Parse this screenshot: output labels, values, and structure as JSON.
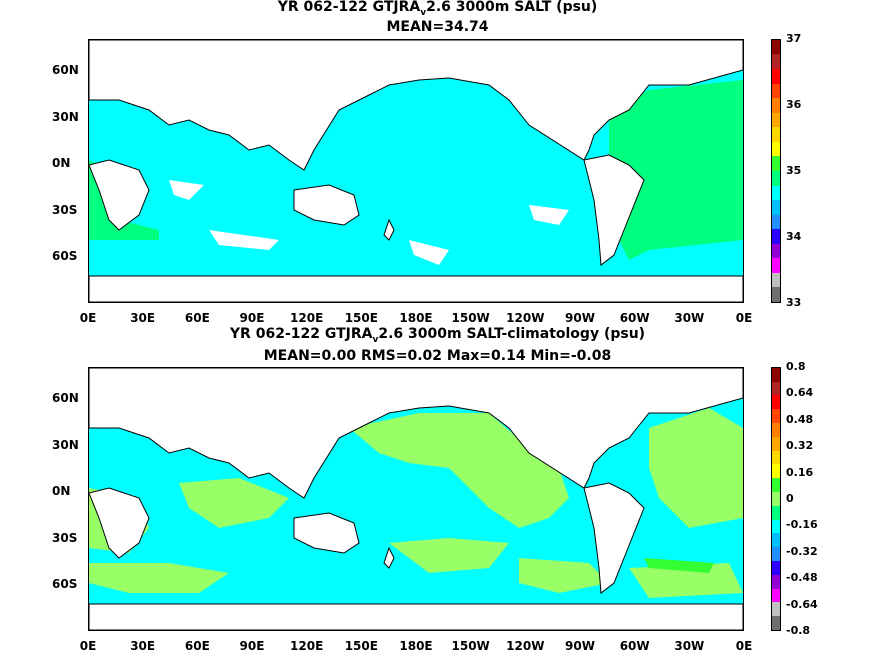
{
  "top": {
    "title_pre": "YR 062-122 GTJRA",
    "title_sub": "v",
    "title_post": "2.6 3000m SALT (psu)",
    "subtitle": "MEAN=34.74",
    "colorbar": {
      "labels": [
        "33",
        "34",
        "35",
        "36",
        "37"
      ],
      "colors": [
        "#6e6e6e",
        "#bfbfbf",
        "#ff00ff",
        "#9400d3",
        "#2b00ff",
        "#1e90ff",
        "#00bfff",
        "#00ffff",
        "#00ff7f",
        "#33ff33",
        "#ffff00",
        "#ffd700",
        "#ffa500",
        "#ff7f00",
        "#ff4500",
        "#ff0000",
        "#b22222",
        "#8b0000"
      ]
    }
  },
  "bottom": {
    "title_pre": "YR 062-122 GTJRA",
    "title_sub": "v",
    "title_post": "2.6 3000m SALT-climatology (psu)",
    "subtitle": "MEAN=0.00   RMS=0.02   Max=0.14   Min=-0.08",
    "colorbar": {
      "labels": [
        "-0.8",
        "-0.64",
        "-0.48",
        "-0.32",
        "-0.16",
        "0",
        "0.16",
        "0.32",
        "0.48",
        "0.64",
        "0.8"
      ],
      "colors": [
        "#6e6e6e",
        "#bfbfbf",
        "#ff00ff",
        "#9400d3",
        "#2b00ff",
        "#1e90ff",
        "#00bfff",
        "#00ffff",
        "#00ff7f",
        "#99ff66",
        "#33ff33",
        "#ffff00",
        "#ffd700",
        "#ffa500",
        "#ff7f00",
        "#ff4500",
        "#ff0000",
        "#b22222",
        "#8b0000"
      ]
    }
  },
  "axes": {
    "x_ticks": [
      "0E",
      "30E",
      "60E",
      "90E",
      "120E",
      "150E",
      "180E",
      "150W",
      "120W",
      "90W",
      "60W",
      "30W",
      "0E"
    ],
    "y_ticks": [
      "60N",
      "30N",
      "0N",
      "30S",
      "60S"
    ]
  },
  "colors": {
    "ocean_top": "#00ffff",
    "atlantic_top": "#00ff7f",
    "ocean_bottom": "#00ffff",
    "anom_pos": "#99ff66",
    "anom_neg": "#00ff7f",
    "anom_hot": "#33ff33"
  }
}
